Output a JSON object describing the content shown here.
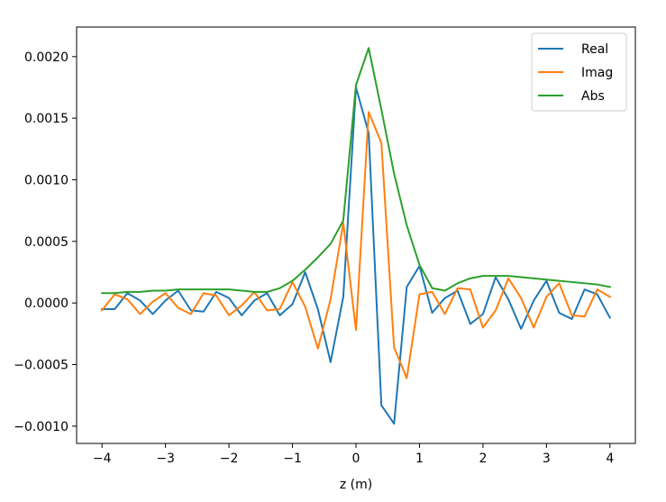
{
  "chart_data": {
    "type": "line",
    "title": "",
    "xlabel": "z (m)",
    "ylabel": "",
    "xlim": [
      -4.4,
      4.4
    ],
    "ylim": [
      -0.00114,
      0.00224
    ],
    "grid": false,
    "legend_position": "top-right",
    "xticks": [
      -4,
      -3,
      -2,
      -1,
      0,
      1,
      2,
      3,
      4
    ],
    "xtick_labels": [
      "−4",
      "−3",
      "−2",
      "−1",
      "0",
      "1",
      "2",
      "3",
      "4"
    ],
    "yticks": [
      -0.001,
      -0.0005,
      0,
      0.0005,
      0.001,
      0.0015,
      0.002
    ],
    "ytick_labels": [
      "−0.0010",
      "−0.0005",
      "0.0000",
      "0.0005",
      "0.0010",
      "0.0015",
      "0.0020"
    ],
    "x": [
      -4.0,
      -3.8,
      -3.6,
      -3.4,
      -3.2,
      -3.0,
      -2.8,
      -2.6,
      -2.4,
      -2.2,
      -2.0,
      -1.8,
      -1.6,
      -1.4,
      -1.2,
      -1.0,
      -0.8,
      -0.6,
      -0.4,
      -0.2,
      0.0,
      0.2,
      0.4,
      0.6,
      0.8,
      1.0,
      1.2,
      1.4,
      1.6,
      1.8,
      2.0,
      2.2,
      2.4,
      2.6,
      2.8,
      3.0,
      3.2,
      3.4,
      3.6,
      3.8,
      4.0
    ],
    "series": [
      {
        "name": "Real",
        "color": "#1f77b4",
        "values": [
          -5e-05,
          -5e-05,
          8e-05,
          2e-05,
          -9e-05,
          2e-05,
          0.0001,
          -6e-05,
          -7e-05,
          9e-05,
          4e-05,
          -0.0001,
          2e-05,
          8e-05,
          -0.0001,
          -1e-05,
          0.00025,
          -5e-05,
          -0.00048,
          5e-05,
          0.00175,
          0.00138,
          -0.00083,
          -0.00098,
          0.00013,
          0.0003,
          -8e-05,
          4e-05,
          0.0001,
          -0.00017,
          -9e-05,
          0.00021,
          3e-05,
          -0.00021,
          2e-05,
          0.00018,
          -8e-05,
          -0.00013,
          0.00011,
          7e-05,
          -0.00012
        ]
      },
      {
        "name": "Imag",
        "color": "#ff7f0e",
        "values": [
          -6e-05,
          7e-05,
          3e-05,
          -9e-05,
          1e-05,
          8e-05,
          -4e-05,
          -9e-05,
          8e-05,
          6e-05,
          -0.0001,
          -2e-05,
          9e-05,
          -6e-05,
          -5e-05,
          0.00017,
          -3e-05,
          -0.00037,
          3e-05,
          0.00065,
          -0.00022,
          0.00155,
          0.0013,
          -0.00036,
          -0.00061,
          7e-05,
          9e-05,
          -9e-05,
          0.00012,
          0.00011,
          -0.0002,
          -6e-05,
          0.0002,
          4e-05,
          -0.0002,
          5e-05,
          0.00016,
          -0.0001,
          -0.00011,
          0.00011,
          5e-05
        ]
      },
      {
        "name": "Abs",
        "color": "#2ca02c",
        "values": [
          8e-05,
          8e-05,
          9e-05,
          9e-05,
          0.0001,
          0.0001,
          0.00011,
          0.00011,
          0.00011,
          0.00011,
          0.00011,
          0.0001,
          9e-05,
          9e-05,
          0.00012,
          0.00018,
          0.00027,
          0.00037,
          0.00048,
          0.00067,
          0.00177,
          0.00207,
          0.00157,
          0.00105,
          0.00063,
          0.00031,
          0.00012,
          0.0001,
          0.00016,
          0.0002,
          0.00022,
          0.00022,
          0.00022,
          0.00021,
          0.0002,
          0.00019,
          0.00018,
          0.00017,
          0.00016,
          0.00015,
          0.00013
        ]
      }
    ]
  }
}
